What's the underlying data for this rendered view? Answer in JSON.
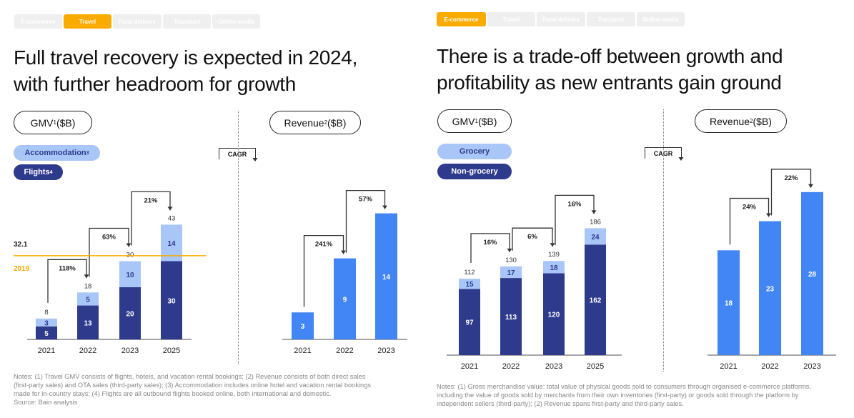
{
  "left": {
    "tabs": [
      "E-commerce",
      "Travel",
      "Food delivery",
      "Transport",
      "Online media"
    ],
    "active_tab": "Travel",
    "title_line1": "Full travel recovery is expected in 2024,",
    "title_line2": "with further headroom for growth",
    "gmv_pill": "GMV",
    "gmv_sup": "1",
    "gmv_unit": " ($B)",
    "revenue_pill": "Revenue",
    "revenue_sup": "2",
    "revenue_unit": " ($B)",
    "legend_light": "Accommodation",
    "legend_light_sup": "3",
    "legend_dark": "Flights",
    "legend_dark_sup": "4",
    "cagr_label": "CAGR",
    "notes": [
      "Notes: (1) Travel GMV consists of flights, hotels, and vacation rental bookings; (2) Revenue consists of both direct sales",
      "(first-party sales) and OTA sales (third-party sales); (3) Accommodation includes online hotel and vacation rental bookings",
      "made for in-country stays; (4) Flights are all outbound flights booked online, both international and domestic.",
      "Source: Bain analysis"
    ]
  },
  "right": {
    "tabs": [
      "E-commerce",
      "Travel",
      "Food delivery",
      "Transport",
      "Online media"
    ],
    "active_tab": "E-commerce",
    "title_line1": "There is a trade-off between growth and",
    "title_line2": "profitability as new entrants gain ground",
    "gmv_pill": "GMV",
    "gmv_sup": "1",
    "gmv_unit": " ($B)",
    "revenue_pill": "Revenue",
    "revenue_sup": "2",
    "revenue_unit": " ($B)",
    "legend_light": "Grocery",
    "legend_dark": "Non-grocery",
    "cagr_label": "CAGR",
    "notes": [
      "Notes: (1) Gross merchandise value: total value of physical goods sold to consumers through organised e-commerce platforms,",
      "including the value of goods sold by merchants from their own inventories (first-party) or goods sold through the platform by",
      "independent sellers (third-party); (2) Revenue spans first-party and third-party sales."
    ]
  },
  "colors": {
    "dark": "#2e3a8c",
    "light": "#a8c6f7",
    "revenue": "#4285f4",
    "accent": "#f9ab00"
  },
  "chart_data": [
    {
      "id": "travel-gmv",
      "type": "bar",
      "stacked": true,
      "title": "GMV ($B)",
      "categories": [
        "2021",
        "2022",
        "2023",
        "2025"
      ],
      "series": [
        {
          "name": "Flights",
          "values": [
            5,
            13,
            20,
            30
          ]
        },
        {
          "name": "Accommodation",
          "values": [
            3,
            5,
            10,
            14
          ]
        }
      ],
      "totals": [
        8,
        18,
        30,
        43
      ],
      "cagr": [
        "118%",
        "63%",
        "21%"
      ],
      "reference_line": {
        "value": 32.1,
        "label_value": "32.1",
        "label_year": "2019"
      }
    },
    {
      "id": "travel-revenue",
      "type": "bar",
      "title": "Revenue ($B)",
      "categories": [
        "2021",
        "2022",
        "2023"
      ],
      "values": [
        3,
        9,
        14
      ],
      "cagr": [
        "241%",
        "57%"
      ]
    },
    {
      "id": "ecom-gmv",
      "type": "bar",
      "stacked": true,
      "title": "GMV ($B)",
      "categories": [
        "2021",
        "2022",
        "2023",
        "2025"
      ],
      "series": [
        {
          "name": "Non-grocery",
          "values": [
            97,
            113,
            120,
            162
          ]
        },
        {
          "name": "Grocery",
          "values": [
            15,
            17,
            18,
            24
          ]
        }
      ],
      "totals": [
        112,
        130,
        139,
        186
      ],
      "cagr": [
        "16%",
        "6%",
        "16%"
      ]
    },
    {
      "id": "ecom-revenue",
      "type": "bar",
      "title": "Revenue ($B)",
      "categories": [
        "2021",
        "2022",
        "2023"
      ],
      "values": [
        18,
        23,
        28
      ],
      "cagr": [
        "24%",
        "22%"
      ]
    }
  ]
}
